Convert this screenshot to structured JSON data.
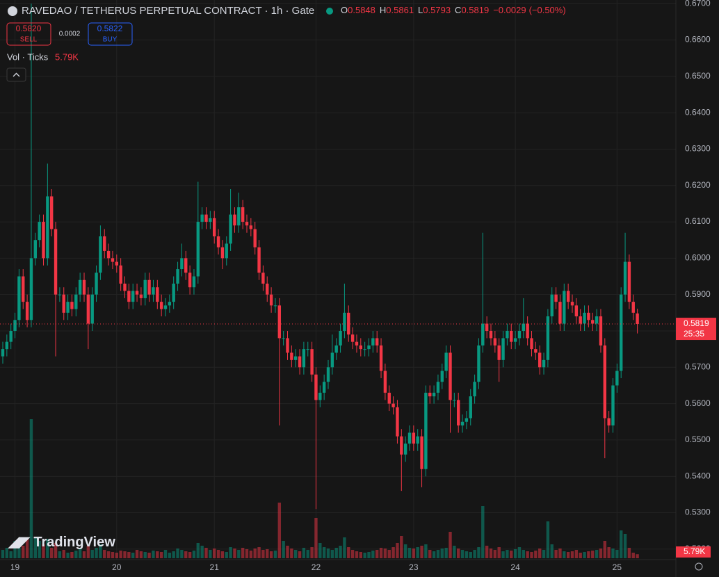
{
  "chart_data": {
    "type": "candlestick",
    "title": "RAVEDAO / TETHERUS PERPETUAL CONTRACT · 1h · Gate",
    "ohlc_labels": [
      "O",
      "H",
      "L",
      "C"
    ],
    "ohlc_values": [
      0.5848,
      0.5861,
      0.5793,
      0.5819
    ],
    "change": {
      "value": -0.0029,
      "label": "−0.0029"
    },
    "change_pct": {
      "value": -0.5,
      "label": "(−0.50%)"
    },
    "sell_price": {
      "value": 0.582,
      "label": "0.5820"
    },
    "sell_label": "SELL",
    "spread": 0.0002,
    "buy_price": 0.5822,
    "buy_label": "BUY",
    "volume_title": "Vol · Ticks",
    "volume_last": {
      "value": 5790,
      "label": "5.79K"
    },
    "countdown": "25:35",
    "watermark": "TradingView",
    "up_color": "#089981",
    "down_color": "#f23645",
    "grid": true,
    "ylim": [
      0.5171,
      0.671
    ],
    "yticks": [
      {
        "value": 0.52,
        "label": "0.5200"
      },
      {
        "value": 0.53,
        "label": "0.5300"
      },
      {
        "value": 0.54,
        "label": "0.5400"
      },
      {
        "value": 0.55,
        "label": "0.5500"
      },
      {
        "value": 0.56,
        "label": "0.5600"
      },
      {
        "value": 0.57,
        "label": "0.5700"
      },
      {
        "value": 0.58,
        "label": "0.5800"
      },
      {
        "value": 0.59,
        "label": "0.5900"
      },
      {
        "value": 0.6,
        "label": "0.6000"
      },
      {
        "value": 0.61,
        "label": "0.6100"
      },
      {
        "value": 0.62,
        "label": "0.6200"
      },
      {
        "value": 0.63,
        "label": "0.6300"
      },
      {
        "value": 0.64,
        "label": "0.6400"
      },
      {
        "value": 0.65,
        "label": "0.6500"
      },
      {
        "value": 0.66,
        "label": "0.6600"
      },
      {
        "value": 0.67,
        "label": "0.6700"
      }
    ],
    "xticks": [
      {
        "value": 3,
        "label": "19"
      },
      {
        "value": 28,
        "label": "20"
      },
      {
        "value": 52,
        "label": "21"
      },
      {
        "value": 77,
        "label": "22"
      },
      {
        "value": 101,
        "label": "23"
      },
      {
        "value": 126,
        "label": "24"
      },
      {
        "value": 151,
        "label": "25"
      }
    ],
    "volume_ylim": [
      0,
      200000
    ],
    "open": [
      0.573,
      0.575,
      0.577,
      0.58,
      0.583,
      0.595,
      0.588,
      0.583,
      0.6,
      0.605,
      0.61,
      0.6,
      0.617,
      0.608,
      0.59,
      0.59,
      0.585,
      0.588,
      0.586,
      0.59,
      0.594,
      0.59,
      0.582,
      0.59,
      0.596,
      0.606,
      0.602,
      0.6,
      0.599,
      0.598,
      0.593,
      0.591,
      0.588,
      0.591,
      0.59,
      0.589,
      0.594,
      0.59,
      0.592,
      0.588,
      0.586,
      0.587,
      0.588,
      0.593,
      0.597,
      0.6,
      0.596,
      0.592,
      0.595,
      0.61,
      0.612,
      0.61,
      0.611,
      0.606,
      0.603,
      0.6,
      0.604,
      0.612,
      0.609,
      0.614,
      0.61,
      0.609,
      0.608,
      0.603,
      0.596,
      0.593,
      0.59,
      0.587,
      0.587,
      0.578,
      0.578,
      0.574,
      0.572,
      0.573,
      0.57,
      0.575,
      0.575,
      0.568,
      0.561,
      0.563,
      0.566,
      0.57,
      0.574,
      0.576,
      0.58,
      0.585,
      0.579,
      0.577,
      0.576,
      0.575,
      0.575,
      0.576,
      0.578,
      0.576,
      0.569,
      0.563,
      0.56,
      0.559,
      0.551,
      0.546,
      0.549,
      0.552,
      0.549,
      0.551,
      0.542,
      0.563,
      0.562,
      0.563,
      0.566,
      0.569,
      0.574,
      0.561,
      0.561,
      0.554,
      0.555,
      0.556,
      0.562,
      0.566,
      0.576,
      0.582,
      0.58,
      0.578,
      0.576,
      0.572,
      0.578,
      0.58,
      0.577,
      0.578,
      0.58,
      0.582,
      0.578,
      0.575,
      0.574,
      0.57,
      0.572,
      0.584,
      0.59,
      0.588,
      0.582,
      0.591,
      0.588,
      0.587,
      0.584,
      0.582,
      0.585,
      0.583,
      0.582,
      0.584,
      0.576,
      0.556,
      0.554,
      0.565,
      0.569,
      0.59,
      0.599,
      0.588,
      0.5848
    ],
    "high": [
      0.577,
      0.579,
      0.582,
      0.585,
      0.597,
      0.597,
      0.59,
      0.67,
      0.607,
      0.612,
      0.612,
      0.626,
      0.619,
      0.61,
      0.592,
      0.592,
      0.59,
      0.59,
      0.592,
      0.596,
      0.596,
      0.592,
      0.592,
      0.598,
      0.609,
      0.608,
      0.604,
      0.602,
      0.601,
      0.6,
      0.595,
      0.593,
      0.593,
      0.593,
      0.592,
      0.596,
      0.596,
      0.594,
      0.594,
      0.59,
      0.589,
      0.59,
      0.595,
      0.599,
      0.604,
      0.602,
      0.598,
      0.597,
      0.621,
      0.614,
      0.614,
      0.613,
      0.613,
      0.608,
      0.605,
      0.606,
      0.619,
      0.614,
      0.618,
      0.616,
      0.612,
      0.611,
      0.61,
      0.605,
      0.598,
      0.595,
      0.592,
      0.589,
      0.589,
      0.58,
      0.58,
      0.576,
      0.575,
      0.575,
      0.577,
      0.577,
      0.577,
      0.57,
      0.565,
      0.568,
      0.572,
      0.579,
      0.578,
      0.582,
      0.593,
      0.587,
      0.581,
      0.579,
      0.578,
      0.577,
      0.578,
      0.58,
      0.58,
      0.578,
      0.571,
      0.565,
      0.562,
      0.561,
      0.553,
      0.551,
      0.554,
      0.554,
      0.553,
      0.553,
      0.565,
      0.565,
      0.565,
      0.568,
      0.571,
      0.576,
      0.576,
      0.563,
      0.563,
      0.557,
      0.558,
      0.564,
      0.568,
      0.578,
      0.607,
      0.584,
      0.582,
      0.58,
      0.578,
      0.58,
      0.582,
      0.582,
      0.58,
      0.582,
      0.589,
      0.584,
      0.58,
      0.577,
      0.576,
      0.574,
      0.586,
      0.592,
      0.592,
      0.59,
      0.593,
      0.593,
      0.59,
      0.589,
      0.586,
      0.587,
      0.587,
      0.585,
      0.586,
      0.586,
      0.578,
      0.558,
      0.567,
      0.571,
      0.592,
      0.607,
      0.601,
      0.59,
      0.5861
    ],
    "low": [
      0.571,
      0.573,
      0.575,
      0.578,
      0.581,
      0.586,
      0.581,
      0.581,
      0.598,
      0.603,
      0.598,
      0.598,
      0.606,
      0.573,
      0.588,
      0.583,
      0.583,
      0.584,
      0.584,
      0.588,
      0.588,
      0.575,
      0.58,
      0.588,
      0.594,
      0.6,
      0.598,
      0.597,
      0.596,
      0.591,
      0.589,
      0.586,
      0.586,
      0.588,
      0.587,
      0.587,
      0.588,
      0.588,
      0.586,
      0.584,
      0.584,
      0.585,
      0.586,
      0.591,
      0.595,
      0.594,
      0.59,
      0.59,
      0.593,
      0.608,
      0.608,
      0.608,
      0.604,
      0.601,
      0.597,
      0.598,
      0.602,
      0.607,
      0.607,
      0.608,
      0.607,
      0.606,
      0.601,
      0.594,
      0.591,
      0.588,
      0.585,
      0.585,
      0.554,
      0.576,
      0.572,
      0.57,
      0.57,
      0.568,
      0.568,
      0.573,
      0.566,
      0.531,
      0.559,
      0.561,
      0.564,
      0.568,
      0.572,
      0.574,
      0.578,
      0.577,
      0.575,
      0.574,
      0.573,
      0.573,
      0.573,
      0.574,
      0.574,
      0.567,
      0.561,
      0.558,
      0.557,
      0.549,
      0.536,
      0.544,
      0.547,
      0.547,
      0.547,
      0.537,
      0.54,
      0.56,
      0.56,
      0.561,
      0.564,
      0.567,
      0.552,
      0.559,
      0.552,
      0.552,
      0.553,
      0.554,
      0.56,
      0.564,
      0.574,
      0.578,
      0.576,
      0.574,
      0.566,
      0.57,
      0.576,
      0.575,
      0.575,
      0.576,
      0.578,
      0.576,
      0.573,
      0.572,
      0.568,
      0.568,
      0.57,
      0.582,
      0.586,
      0.58,
      0.58,
      0.586,
      0.585,
      0.582,
      0.58,
      0.58,
      0.581,
      0.58,
      0.58,
      0.574,
      0.545,
      0.552,
      0.552,
      0.563,
      0.567,
      0.588,
      0.586,
      0.583,
      0.5793
    ],
    "close": [
      0.575,
      0.577,
      0.58,
      0.583,
      0.595,
      0.588,
      0.583,
      0.6,
      0.605,
      0.61,
      0.6,
      0.617,
      0.608,
      0.59,
      0.59,
      0.585,
      0.588,
      0.586,
      0.59,
      0.594,
      0.59,
      0.582,
      0.59,
      0.596,
      0.606,
      0.602,
      0.6,
      0.599,
      0.598,
      0.593,
      0.591,
      0.588,
      0.591,
      0.59,
      0.589,
      0.594,
      0.59,
      0.592,
      0.588,
      0.586,
      0.587,
      0.588,
      0.593,
      0.597,
      0.6,
      0.596,
      0.592,
      0.595,
      0.61,
      0.612,
      0.61,
      0.611,
      0.606,
      0.603,
      0.6,
      0.604,
      0.612,
      0.609,
      0.614,
      0.61,
      0.609,
      0.608,
      0.603,
      0.596,
      0.593,
      0.59,
      0.587,
      0.587,
      0.578,
      0.578,
      0.574,
      0.572,
      0.573,
      0.57,
      0.575,
      0.575,
      0.568,
      0.561,
      0.563,
      0.566,
      0.57,
      0.574,
      0.576,
      0.58,
      0.585,
      0.579,
      0.577,
      0.576,
      0.575,
      0.575,
      0.576,
      0.578,
      0.576,
      0.569,
      0.563,
      0.56,
      0.559,
      0.551,
      0.546,
      0.549,
      0.552,
      0.549,
      0.551,
      0.542,
      0.563,
      0.562,
      0.563,
      0.566,
      0.569,
      0.574,
      0.561,
      0.561,
      0.554,
      0.555,
      0.556,
      0.562,
      0.566,
      0.576,
      0.582,
      0.58,
      0.578,
      0.576,
      0.572,
      0.578,
      0.58,
      0.577,
      0.578,
      0.58,
      0.582,
      0.578,
      0.575,
      0.574,
      0.57,
      0.572,
      0.584,
      0.59,
      0.588,
      0.582,
      0.591,
      0.588,
      0.587,
      0.584,
      0.582,
      0.585,
      0.583,
      0.582,
      0.584,
      0.576,
      0.556,
      0.554,
      0.565,
      0.569,
      0.59,
      0.599,
      0.588,
      0.585,
      0.5819
    ],
    "volume": [
      12000,
      15000,
      10000,
      25000,
      22000,
      18000,
      30000,
      200000,
      30000,
      25000,
      20000,
      28000,
      15000,
      22000,
      10000,
      12000,
      8000,
      9000,
      11000,
      14000,
      10000,
      18000,
      12000,
      15000,
      20000,
      12000,
      10000,
      9000,
      8000,
      11000,
      10000,
      9000,
      8000,
      12000,
      10000,
      9000,
      8000,
      11000,
      10000,
      9000,
      12000,
      8000,
      10000,
      14000,
      12000,
      10000,
      9000,
      11000,
      22000,
      18000,
      15000,
      12000,
      14000,
      12000,
      10000,
      9000,
      16000,
      14000,
      12000,
      15000,
      13000,
      11000,
      14000,
      16000,
      12000,
      13000,
      10000,
      11000,
      80000,
      25000,
      18000,
      14000,
      12000,
      10000,
      15000,
      12000,
      16000,
      58000,
      22000,
      16000,
      14000,
      12000,
      15000,
      18000,
      30000,
      16000,
      12000,
      10000,
      9000,
      8000,
      9000,
      11000,
      12000,
      15000,
      14000,
      12000,
      16000,
      22000,
      32000,
      20000,
      15000,
      14000,
      16000,
      18000,
      20000,
      12000,
      10000,
      12000,
      14000,
      15000,
      38000,
      18000,
      14000,
      12000,
      10000,
      9000,
      12000,
      16000,
      75000,
      18000,
      14000,
      12000,
      16000,
      10000,
      12000,
      11000,
      13000,
      16000,
      12000,
      10000,
      9000,
      11000,
      14000,
      12000,
      53000,
      20000,
      12000,
      14000,
      10000,
      9000,
      10000,
      12000,
      8000,
      9000,
      10000,
      11000,
      12000,
      14000,
      25000,
      16000,
      14000,
      12000,
      40000,
      35000,
      15000,
      8000,
      5790
    ]
  }
}
